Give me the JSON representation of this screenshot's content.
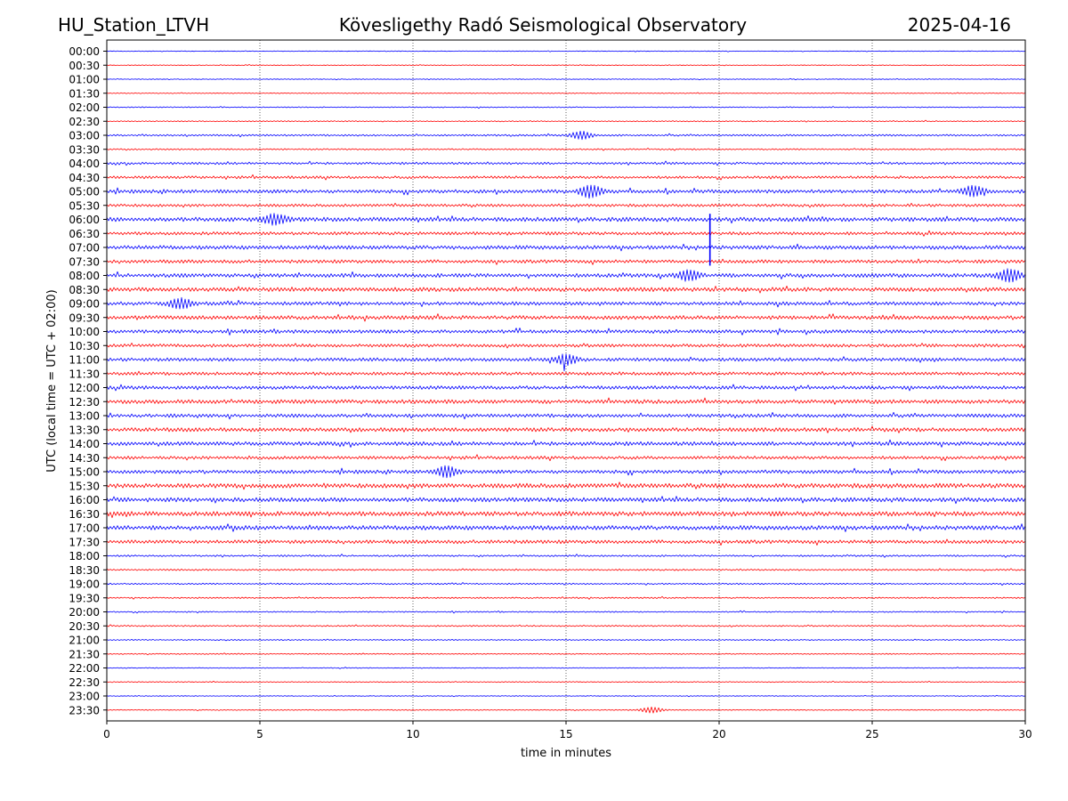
{
  "header": {
    "station": "HU_Station_LTVH",
    "observatory": "Kövesligethy Radó Seismological Observatory",
    "date": "2025-04-16"
  },
  "chart_data": {
    "type": "line",
    "title": "Kövesligethy Radó Seismological Observatory",
    "xlabel": "time in minutes",
    "ylabel": "UTC (local time = UTC + 02:00)",
    "xlim": [
      0,
      30
    ],
    "x_ticks": [
      0,
      5,
      10,
      15,
      20,
      25,
      30
    ],
    "x_tick_labels": [
      "0",
      "5",
      "10",
      "15",
      "20",
      "25",
      "30"
    ],
    "grid": "vertical dotted lines at x ticks",
    "trace_colors": [
      "#0000ff",
      "#ff0000"
    ],
    "rows": [
      {
        "label": "00:00",
        "level": 0.4
      },
      {
        "label": "00:30",
        "level": 0.4
      },
      {
        "label": "01:00",
        "level": 0.4
      },
      {
        "label": "01:30",
        "level": 0.5
      },
      {
        "label": "02:00",
        "level": 0.6
      },
      {
        "label": "02:30",
        "level": 0.6
      },
      {
        "label": "03:00",
        "level": 1.0
      },
      {
        "label": "03:30",
        "level": 0.8
      },
      {
        "label": "04:00",
        "level": 1.3
      },
      {
        "label": "04:30",
        "level": 1.5
      },
      {
        "label": "05:00",
        "level": 2.0
      },
      {
        "label": "05:30",
        "level": 1.6
      },
      {
        "label": "06:00",
        "level": 2.4
      },
      {
        "label": "06:30",
        "level": 1.8
      },
      {
        "label": "07:00",
        "level": 2.2
      },
      {
        "label": "07:30",
        "level": 1.9
      },
      {
        "label": "08:00",
        "level": 2.2
      },
      {
        "label": "08:30",
        "level": 2.3
      },
      {
        "label": "09:00",
        "level": 2.0
      },
      {
        "label": "09:30",
        "level": 2.2
      },
      {
        "label": "10:00",
        "level": 2.0
      },
      {
        "label": "10:30",
        "level": 1.8
      },
      {
        "label": "11:00",
        "level": 1.9
      },
      {
        "label": "11:30",
        "level": 1.8
      },
      {
        "label": "12:00",
        "level": 2.0
      },
      {
        "label": "12:30",
        "level": 2.2
      },
      {
        "label": "13:00",
        "level": 2.0
      },
      {
        "label": "13:30",
        "level": 2.2
      },
      {
        "label": "14:00",
        "level": 2.2
      },
      {
        "label": "14:30",
        "level": 1.8
      },
      {
        "label": "15:00",
        "level": 2.0
      },
      {
        "label": "15:30",
        "level": 2.6
      },
      {
        "label": "16:00",
        "level": 2.4
      },
      {
        "label": "16:30",
        "level": 2.6
      },
      {
        "label": "17:00",
        "level": 2.5
      },
      {
        "label": "17:30",
        "level": 2.0
      },
      {
        "label": "18:00",
        "level": 1.0
      },
      {
        "label": "18:30",
        "level": 0.9
      },
      {
        "label": "19:00",
        "level": 0.8
      },
      {
        "label": "19:30",
        "level": 0.8
      },
      {
        "label": "20:00",
        "level": 0.7
      },
      {
        "label": "20:30",
        "level": 0.8
      },
      {
        "label": "21:00",
        "level": 0.6
      },
      {
        "label": "21:30",
        "level": 0.6
      },
      {
        "label": "22:00",
        "level": 0.5
      },
      {
        "label": "22:30",
        "level": 0.5
      },
      {
        "label": "23:00",
        "level": 0.4
      },
      {
        "label": "23:30",
        "level": 0.5
      }
    ],
    "events": [
      {
        "row": 14,
        "x": 19.7,
        "type": "spike",
        "amp_down": 2.4,
        "amp_up": 1.3
      },
      {
        "row": 6,
        "x": 15.5,
        "type": "burst",
        "amp": 4
      },
      {
        "row": 10,
        "x": 15.8,
        "type": "burst",
        "amp": 6
      },
      {
        "row": 10,
        "x": 28.3,
        "type": "burst",
        "amp": 5
      },
      {
        "row": 12,
        "x": 5.5,
        "type": "burst",
        "amp": 5
      },
      {
        "row": 16,
        "x": 19.0,
        "type": "burst",
        "amp": 5
      },
      {
        "row": 16,
        "x": 29.5,
        "type": "burst",
        "amp": 6
      },
      {
        "row": 18,
        "x": 2.4,
        "type": "burst",
        "amp": 5
      },
      {
        "row": 22,
        "x": 15.0,
        "type": "burst",
        "amp": 5
      },
      {
        "row": 30,
        "x": 11.1,
        "type": "burst",
        "amp": 5
      },
      {
        "row": 47,
        "x": 17.8,
        "type": "burst",
        "amp": 3
      }
    ]
  }
}
